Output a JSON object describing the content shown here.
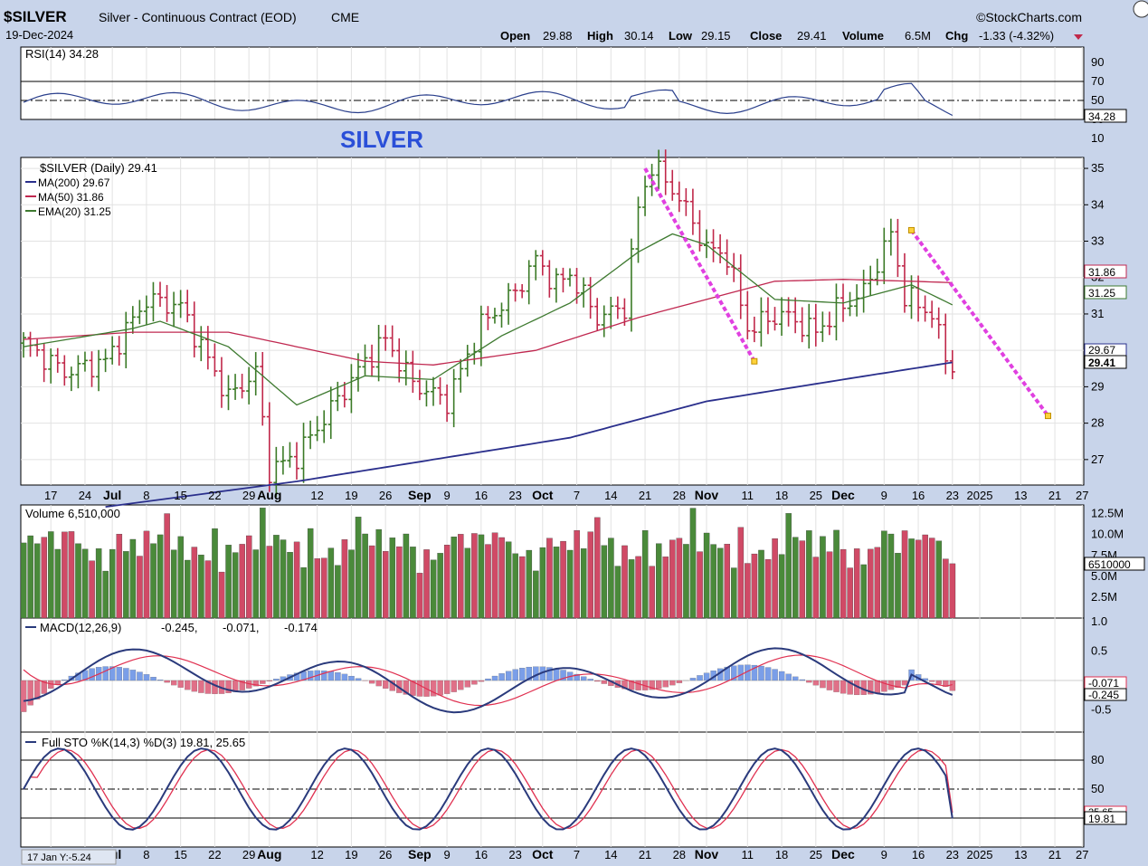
{
  "header": {
    "symbol": "$SILVER",
    "description": "Silver - Continuous Contract (EOD)",
    "exchange": "CME",
    "date": "19-Dec-2024",
    "brand": "©StockCharts.com",
    "open_label": "Open",
    "open": "29.88",
    "high_label": "High",
    "high": "30.14",
    "low_label": "Low",
    "low": "29.15",
    "close_label": "Close",
    "close": "29.41",
    "volume_label": "Volume",
    "volume": "6.5M",
    "chg_label": "Chg",
    "chg": "-1.33 (-4.32%)"
  },
  "annotation": "SILVER",
  "footer_note": "17 Jan Y:-5.24",
  "colors": {
    "up": "#3b7a26",
    "down": "#c0284a",
    "ma200": "#2a2f8c",
    "ma50": "#c02850",
    "ema20": "#3e7a30",
    "trend": "#e040e0",
    "rsi": "#2a3f8c"
  },
  "x_axis": {
    "labels": [
      {
        "t": "17",
        "d": 4
      },
      {
        "t": "24",
        "d": 9
      },
      {
        "t": "Jul",
        "d": 13
      },
      {
        "t": "8",
        "d": 18
      },
      {
        "t": "15",
        "d": 23
      },
      {
        "t": "22",
        "d": 28
      },
      {
        "t": "29",
        "d": 33
      },
      {
        "t": "Aug",
        "d": 36
      },
      {
        "t": "12",
        "d": 43
      },
      {
        "t": "19",
        "d": 48
      },
      {
        "t": "26",
        "d": 53
      },
      {
        "t": "Sep",
        "d": 58
      },
      {
        "t": "9",
        "d": 62
      },
      {
        "t": "16",
        "d": 67
      },
      {
        "t": "23",
        "d": 72
      },
      {
        "t": "Oct",
        "d": 76
      },
      {
        "t": "7",
        "d": 81
      },
      {
        "t": "14",
        "d": 86
      },
      {
        "t": "21",
        "d": 91
      },
      {
        "t": "28",
        "d": 96
      },
      {
        "t": "Nov",
        "d": 100
      },
      {
        "t": "11",
        "d": 106
      },
      {
        "t": "18",
        "d": 111
      },
      {
        "t": "25",
        "d": 116
      },
      {
        "t": "Dec",
        "d": 120
      },
      {
        "t": "9",
        "d": 126
      },
      {
        "t": "16",
        "d": 131
      },
      {
        "t": "23",
        "d": 136
      },
      {
        "t": "2025",
        "d": 140
      },
      {
        "t": "13",
        "d": 146
      },
      {
        "t": "21",
        "d": 151
      },
      {
        "t": "27",
        "d": 155
      }
    ]
  },
  "rsi": {
    "label": "RSI(14) 34.28",
    "value": "34.28",
    "ticks": [
      90,
      70,
      50,
      30,
      10
    ]
  },
  "price": {
    "label": "$SILVER (Daily) 29.41",
    "ma200_label": "MA(200) 29.67",
    "ma50_label": "MA(50) 31.86",
    "ema20_label": "EMA(20) 31.25",
    "tag_ma50": "31.86",
    "tag_ema20": "31.25",
    "tag_ma200": "29.67",
    "tag_close": "29.41",
    "ticks": [
      35,
      34,
      33,
      32,
      31,
      30,
      29,
      28,
      27
    ]
  },
  "volume": {
    "label": "Volume 6,510,000",
    "tag": "6510000",
    "ticks": [
      "12.5M",
      "10.0M",
      "7.5M",
      "5.0M",
      "2.5M"
    ]
  },
  "macd": {
    "label_prefix": "MACD(12,26,9)",
    "v1": "-0.245,",
    "v2": "-0.071,",
    "v3": "-0.174",
    "tag1": "-0.071",
    "tag2": "-0.245",
    "ticks": [
      "1.0",
      "0.5",
      "0",
      "-0.5"
    ]
  },
  "sto": {
    "label": "Full STO %K(14,3) %D(3) 19.81, 25.65",
    "tag1": "25.65",
    "tag2": "19.81",
    "ticks": [
      "80",
      "50"
    ]
  },
  "chart_data": {
    "type": "line",
    "title": "$SILVER Silver - Continuous Contract (EOD) CME",
    "ylabel": "",
    "ylim": [
      26.3,
      35.3
    ],
    "series": [
      {
        "name": "$SILVER (Daily)",
        "x": [
          0,
          6,
          12,
          18,
          23,
          26,
          30,
          34,
          36,
          40,
          45,
          50,
          53,
          57,
          62,
          67,
          72,
          75,
          78,
          80,
          84,
          88,
          90,
          92,
          96,
          100,
          103,
          106,
          111,
          116,
          119,
          123,
          127,
          129,
          133,
          135,
          136
        ],
        "values": [
          30.2,
          29.4,
          29.7,
          31.4,
          31.2,
          30.1,
          28.7,
          29.4,
          26.7,
          27.1,
          28.4,
          29.7,
          30.3,
          29.1,
          28.6,
          30.7,
          31.6,
          32.5,
          31.8,
          32.1,
          30.9,
          31.2,
          33.9,
          35.1,
          34.2,
          32.8,
          32.6,
          30.6,
          31.0,
          30.5,
          31.1,
          31.6,
          33.2,
          31.5,
          31.0,
          29.8,
          29.41
        ]
      },
      {
        "name": "MA(200)",
        "x": [
          12,
          40,
          80,
          100,
          120,
          136
        ],
        "values": [
          25.7,
          26.4,
          27.6,
          28.6,
          29.2,
          29.67
        ]
      },
      {
        "name": "MA(50)",
        "x": [
          0,
          16,
          30,
          40,
          50,
          60,
          75,
          90,
          100,
          110,
          120,
          130,
          136
        ],
        "values": [
          30.3,
          30.5,
          30.5,
          30.1,
          29.7,
          29.6,
          30.0,
          30.9,
          31.4,
          31.9,
          31.95,
          31.9,
          31.86
        ]
      },
      {
        "name": "EMA(20)",
        "x": [
          0,
          16,
          20,
          30,
          40,
          50,
          60,
          70,
          80,
          90,
          95,
          100,
          110,
          120,
          130,
          136
        ],
        "values": [
          30.1,
          30.6,
          30.8,
          30.1,
          28.5,
          29.3,
          29.2,
          30.4,
          31.3,
          32.7,
          33.2,
          32.9,
          31.4,
          31.3,
          31.8,
          31.25
        ]
      }
    ],
    "trendlines": [
      {
        "x": [
          91,
          107
        ],
        "values": [
          35.0,
          29.7
        ]
      },
      {
        "x": [
          130,
          150
        ],
        "values": [
          33.3,
          28.2
        ]
      }
    ]
  }
}
